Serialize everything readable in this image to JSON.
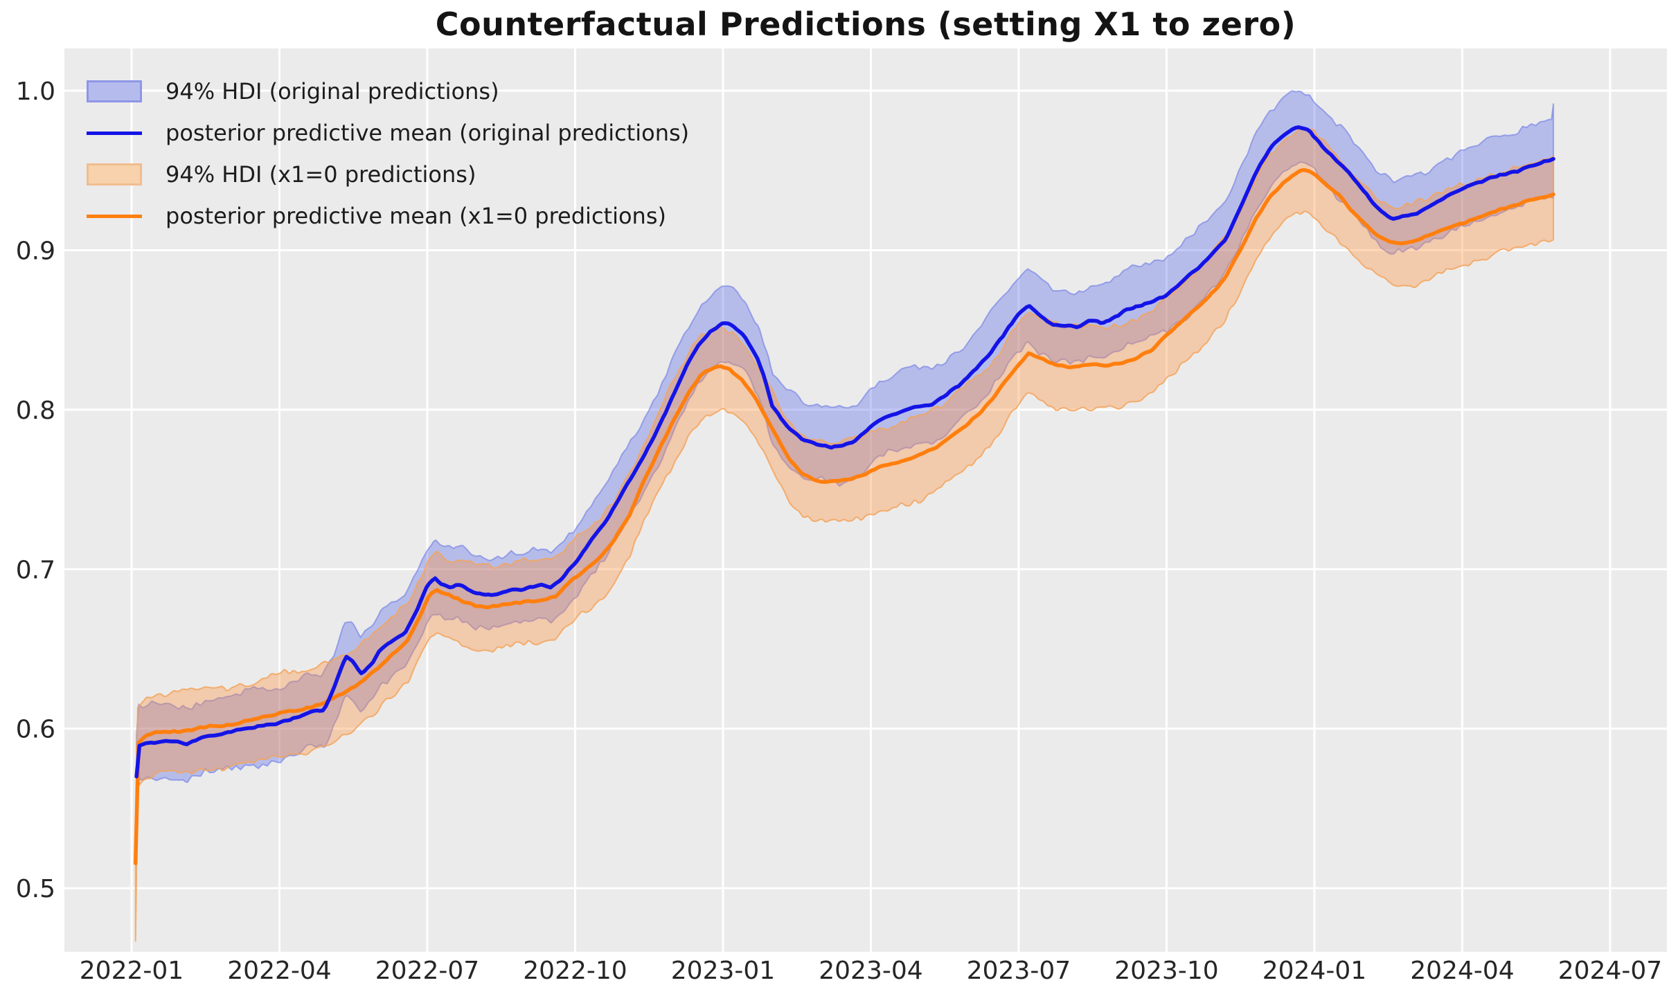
{
  "title": "Counterfactual Predictions (setting X1 to zero)",
  "legend": {
    "entries": [
      {
        "label": "94% HDI (original predictions)",
        "marker": "patch",
        "series": "original"
      },
      {
        "label": "posterior predictive mean (original predictions)",
        "marker": "line",
        "series": "original"
      },
      {
        "label": "94% HDI (x1=0 predictions)",
        "marker": "patch",
        "series": "x1zero"
      },
      {
        "label": "posterior predictive mean (x1=0 predictions)",
        "marker": "line",
        "series": "x1zero"
      }
    ]
  },
  "colors": {
    "figure_bg": "#ffffff",
    "axes_bg": "#ebebeb",
    "grid": "#ffffff",
    "tick_text": "#262626",
    "original_line": "#1414e6",
    "x1zero_line": "#ff7f0e",
    "original_fill": "rgba(60,80,230,0.30)",
    "x1zero_fill": "rgba(255,143,60,0.36)",
    "original_edge": "rgba(100,115,230,0.55)",
    "x1zero_edge": "rgba(243,164,92,0.85)",
    "legend_patch_original_fill": "#b5bbec",
    "legend_patch_original_edge": "#8e96e6",
    "legend_patch_x1zero_fill": "#f7d2ac",
    "legend_patch_x1zero_edge": "#f0bd8e"
  },
  "chart_data": {
    "type": "line",
    "title": "Counterfactual Predictions (setting X1 to zero)",
    "xlabel": "",
    "ylabel": "",
    "x_unit": "months since 2022-01 tick",
    "xlim_months": [
      -1.363,
      31.153
    ],
    "ylim": [
      0.4601,
      1.0265
    ],
    "grid": true,
    "legend_position": "upper left",
    "x_ticks": [
      {
        "m": 0,
        "label": "2022-01"
      },
      {
        "m": 3,
        "label": "2022-04"
      },
      {
        "m": 6,
        "label": "2022-07"
      },
      {
        "m": 9,
        "label": "2022-10"
      },
      {
        "m": 12,
        "label": "2023-01"
      },
      {
        "m": 15,
        "label": "2023-04"
      },
      {
        "m": 18,
        "label": "2023-07"
      },
      {
        "m": 21,
        "label": "2023-10"
      },
      {
        "m": 24,
        "label": "2024-01"
      },
      {
        "m": 27,
        "label": "2024-04"
      },
      {
        "m": 30,
        "label": "2024-07"
      }
    ],
    "y_ticks": [
      {
        "v": 0.5,
        "label": "0.5"
      },
      {
        "v": 0.6,
        "label": "0.6"
      },
      {
        "v": 0.7,
        "label": "0.7"
      },
      {
        "v": 0.8,
        "label": "0.8"
      },
      {
        "v": 0.9,
        "label": "0.9"
      },
      {
        "v": 1.0,
        "label": "1.0"
      }
    ],
    "series": [
      {
        "name": "posterior predictive mean (original predictions)",
        "color_key": "original_line",
        "points": [
          [
            0.1,
            0.57
          ],
          [
            0.13,
            0.589
          ],
          [
            0.3,
            0.591
          ],
          [
            0.5,
            0.5915
          ],
          [
            0.7,
            0.5925
          ],
          [
            0.9,
            0.5922
          ],
          [
            1.1,
            0.5905
          ],
          [
            1.3,
            0.5925
          ],
          [
            1.5,
            0.595
          ],
          [
            1.8,
            0.5965
          ],
          [
            2.0,
            0.598
          ],
          [
            2.3,
            0.6
          ],
          [
            2.6,
            0.6015
          ],
          [
            3.0,
            0.6035
          ],
          [
            3.3,
            0.606
          ],
          [
            3.6,
            0.6095
          ],
          [
            3.9,
            0.612
          ],
          [
            4.1,
            0.625
          ],
          [
            4.35,
            0.6455
          ],
          [
            4.5,
            0.641
          ],
          [
            4.65,
            0.634
          ],
          [
            4.85,
            0.6395
          ],
          [
            5.05,
            0.6495
          ],
          [
            5.3,
            0.6555
          ],
          [
            5.55,
            0.661
          ],
          [
            5.8,
            0.6745
          ],
          [
            6.0,
            0.689
          ],
          [
            6.15,
            0.6935
          ],
          [
            6.3,
            0.69
          ],
          [
            6.45,
            0.6875
          ],
          [
            6.6,
            0.69
          ],
          [
            6.75,
            0.6885
          ],
          [
            6.9,
            0.686
          ],
          [
            7.1,
            0.6845
          ],
          [
            7.3,
            0.684
          ],
          [
            7.5,
            0.686
          ],
          [
            7.7,
            0.6875
          ],
          [
            7.9,
            0.6865
          ],
          [
            8.1,
            0.6885
          ],
          [
            8.3,
            0.6895
          ],
          [
            8.5,
            0.688
          ],
          [
            8.7,
            0.6925
          ],
          [
            8.9,
            0.7
          ],
          [
            9.1,
            0.7075
          ],
          [
            9.35,
            0.7185
          ],
          [
            9.6,
            0.7285
          ],
          [
            9.85,
            0.742
          ],
          [
            10.1,
            0.7555
          ],
          [
            10.4,
            0.7705
          ],
          [
            10.7,
            0.789
          ],
          [
            11.0,
            0.8095
          ],
          [
            11.25,
            0.8265
          ],
          [
            11.5,
            0.8405
          ],
          [
            11.75,
            0.849
          ],
          [
            12.0,
            0.8542
          ],
          [
            12.2,
            0.8525
          ],
          [
            12.45,
            0.845
          ],
          [
            12.7,
            0.8315
          ],
          [
            12.85,
            0.8185
          ],
          [
            13.0,
            0.8015
          ],
          [
            13.3,
            0.789
          ],
          [
            13.6,
            0.7815
          ],
          [
            13.9,
            0.778
          ],
          [
            14.2,
            0.7765
          ],
          [
            14.45,
            0.7775
          ],
          [
            14.7,
            0.7805
          ],
          [
            15.0,
            0.79
          ],
          [
            15.3,
            0.7955
          ],
          [
            15.6,
            0.7985
          ],
          [
            15.9,
            0.8015
          ],
          [
            16.2,
            0.8025
          ],
          [
            16.5,
            0.8085
          ],
          [
            16.8,
            0.8155
          ],
          [
            17.1,
            0.8245
          ],
          [
            17.4,
            0.8345
          ],
          [
            17.7,
            0.8475
          ],
          [
            17.95,
            0.859
          ],
          [
            18.2,
            0.8665
          ],
          [
            18.45,
            0.859
          ],
          [
            18.7,
            0.8535
          ],
          [
            18.95,
            0.8525
          ],
          [
            19.2,
            0.8515
          ],
          [
            19.45,
            0.8565
          ],
          [
            19.7,
            0.8545
          ],
          [
            19.95,
            0.8585
          ],
          [
            20.2,
            0.8635
          ],
          [
            20.45,
            0.8655
          ],
          [
            20.7,
            0.868
          ],
          [
            21.0,
            0.871
          ],
          [
            21.3,
            0.879
          ],
          [
            21.6,
            0.8875
          ],
          [
            21.9,
            0.897
          ],
          [
            22.2,
            0.9075
          ],
          [
            22.5,
            0.9265
          ],
          [
            22.8,
            0.9475
          ],
          [
            23.1,
            0.9635
          ],
          [
            23.35,
            0.9715
          ],
          [
            23.55,
            0.9755
          ],
          [
            23.7,
            0.9775
          ],
          [
            23.9,
            0.9745
          ],
          [
            24.1,
            0.9675
          ],
          [
            24.35,
            0.9595
          ],
          [
            24.6,
            0.9525
          ],
          [
            24.85,
            0.9435
          ],
          [
            25.1,
            0.9335
          ],
          [
            25.35,
            0.9245
          ],
          [
            25.6,
            0.9195
          ],
          [
            25.85,
            0.9215
          ],
          [
            26.1,
            0.9225
          ],
          [
            26.35,
            0.9275
          ],
          [
            26.6,
            0.9315
          ],
          [
            26.85,
            0.9365
          ],
          [
            27.1,
            0.9405
          ],
          [
            27.35,
            0.9425
          ],
          [
            27.6,
            0.9455
          ],
          [
            27.85,
            0.9475
          ],
          [
            28.1,
            0.949
          ],
          [
            28.35,
            0.9525
          ],
          [
            28.6,
            0.9545
          ],
          [
            28.85,
            0.957
          ]
        ]
      },
      {
        "name": "posterior predictive mean (x1=0 predictions)",
        "color_key": "x1zero_line",
        "points": [
          [
            0.08,
            0.5156
          ],
          [
            0.12,
            0.5905
          ],
          [
            0.3,
            0.596
          ],
          [
            0.5,
            0.597
          ],
          [
            0.7,
            0.5975
          ],
          [
            0.9,
            0.598
          ],
          [
            1.1,
            0.5985
          ],
          [
            1.4,
            0.6
          ],
          [
            1.7,
            0.6015
          ],
          [
            2.0,
            0.6025
          ],
          [
            2.3,
            0.6045
          ],
          [
            2.6,
            0.6065
          ],
          [
            2.9,
            0.6085
          ],
          [
            3.2,
            0.6105
          ],
          [
            3.5,
            0.6125
          ],
          [
            3.8,
            0.615
          ],
          [
            4.1,
            0.619
          ],
          [
            4.4,
            0.6245
          ],
          [
            4.7,
            0.63
          ],
          [
            5.0,
            0.6375
          ],
          [
            5.3,
            0.6465
          ],
          [
            5.6,
            0.6545
          ],
          [
            5.85,
            0.6695
          ],
          [
            6.05,
            0.684
          ],
          [
            6.2,
            0.6865
          ],
          [
            6.4,
            0.6835
          ],
          [
            6.6,
            0.681
          ],
          [
            6.8,
            0.679
          ],
          [
            7.0,
            0.6775
          ],
          [
            7.2,
            0.6765
          ],
          [
            7.4,
            0.6765
          ],
          [
            7.6,
            0.6775
          ],
          [
            7.8,
            0.679
          ],
          [
            8.0,
            0.68
          ],
          [
            8.3,
            0.6815
          ],
          [
            8.6,
            0.6835
          ],
          [
            8.9,
            0.6925
          ],
          [
            9.2,
            0.7
          ],
          [
            9.5,
            0.7075
          ],
          [
            9.8,
            0.7185
          ],
          [
            10.1,
            0.7335
          ],
          [
            10.4,
            0.7555
          ],
          [
            10.7,
            0.7745
          ],
          [
            11.0,
            0.7935
          ],
          [
            11.3,
            0.8105
          ],
          [
            11.55,
            0.8225
          ],
          [
            11.8,
            0.8265
          ],
          [
            11.95,
            0.8275
          ],
          [
            12.15,
            0.825
          ],
          [
            12.4,
            0.8175
          ],
          [
            12.7,
            0.8045
          ],
          [
            13.0,
            0.7875
          ],
          [
            13.3,
            0.7705
          ],
          [
            13.6,
            0.76
          ],
          [
            13.9,
            0.756
          ],
          [
            14.2,
            0.7555
          ],
          [
            14.5,
            0.7565
          ],
          [
            14.8,
            0.7585
          ],
          [
            15.1,
            0.7635
          ],
          [
            15.4,
            0.766
          ],
          [
            15.7,
            0.7685
          ],
          [
            16.0,
            0.7715
          ],
          [
            16.3,
            0.776
          ],
          [
            16.6,
            0.7825
          ],
          [
            16.9,
            0.789
          ],
          [
            17.2,
            0.797
          ],
          [
            17.5,
            0.8075
          ],
          [
            17.8,
            0.8205
          ],
          [
            18.0,
            0.829
          ],
          [
            18.2,
            0.8355
          ],
          [
            18.4,
            0.8335
          ],
          [
            18.6,
            0.8305
          ],
          [
            18.8,
            0.8285
          ],
          [
            19.0,
            0.8275
          ],
          [
            19.2,
            0.828
          ],
          [
            19.5,
            0.8285
          ],
          [
            19.8,
            0.8285
          ],
          [
            20.1,
            0.8295
          ],
          [
            20.4,
            0.8325
          ],
          [
            20.7,
            0.8375
          ],
          [
            21.0,
            0.8465
          ],
          [
            21.3,
            0.8545
          ],
          [
            21.6,
            0.8625
          ],
          [
            21.9,
            0.872
          ],
          [
            22.2,
            0.8835
          ],
          [
            22.5,
            0.9
          ],
          [
            22.8,
            0.9185
          ],
          [
            23.1,
            0.933
          ],
          [
            23.4,
            0.9435
          ],
          [
            23.65,
            0.9495
          ],
          [
            23.8,
            0.9515
          ],
          [
            24.0,
            0.9485
          ],
          [
            24.25,
            0.941
          ],
          [
            24.5,
            0.934
          ],
          [
            24.75,
            0.9245
          ],
          [
            25.0,
            0.9165
          ],
          [
            25.25,
            0.9095
          ],
          [
            25.5,
            0.9055
          ],
          [
            25.75,
            0.9045
          ],
          [
            26.0,
            0.906
          ],
          [
            26.3,
            0.909
          ],
          [
            26.6,
            0.9125
          ],
          [
            26.9,
            0.9155
          ],
          [
            27.2,
            0.9185
          ],
          [
            27.5,
            0.9215
          ],
          [
            27.8,
            0.9255
          ],
          [
            28.1,
            0.928
          ],
          [
            28.35,
            0.9305
          ],
          [
            28.6,
            0.9325
          ],
          [
            28.85,
            0.935
          ]
        ]
      }
    ],
    "hdi_bands": [
      {
        "name": "94% HDI (original predictions)",
        "series_index": 0,
        "upper_halfwidth": 0.0235,
        "lower_halfwidth": 0.0225,
        "fill_key": "original_fill",
        "edge_key": "original_edge",
        "end_upper_spike": 0.01,
        "start_lower_spike": 0.0
      },
      {
        "name": "94% HDI (x1=0 predictions)",
        "series_index": 1,
        "upper_halfwidth": 0.0245,
        "lower_halfwidth": 0.0265,
        "fill_key": "x1zero_fill",
        "edge_key": "x1zero_edge",
        "end_upper_spike": 0.0,
        "start_lower_spike": 0.021
      }
    ],
    "render_hints": {
      "edge_noise_amp": 0.0042,
      "line_noise_amp": 0.0013,
      "noise_seed": 7
    }
  }
}
